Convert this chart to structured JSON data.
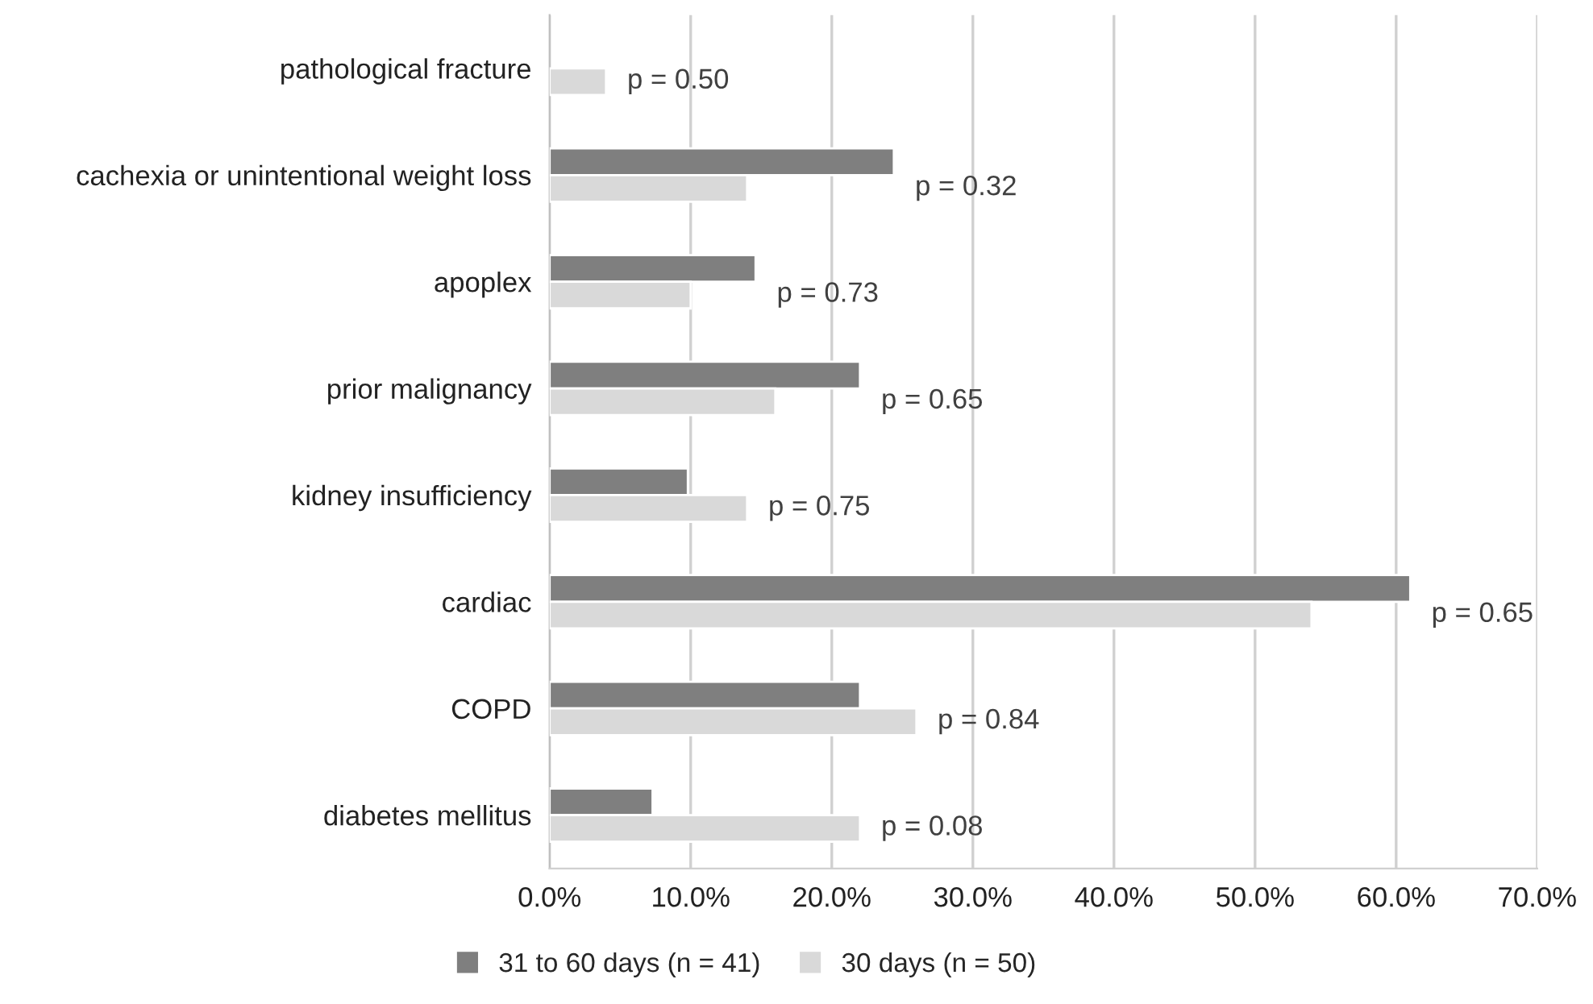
{
  "chart_data": {
    "type": "bar",
    "orientation": "horizontal",
    "categories": [
      "pathological fracture",
      "cachexia or unintentional weight loss",
      "apoplex",
      "prior malignancy",
      "kidney insufficiency",
      "cardiac",
      "COPD",
      "diabetes mellitus"
    ],
    "series": [
      {
        "name": "31 to 60 days (n = 41)",
        "color": "#7f7f7f",
        "values": [
          null,
          24.4,
          14.6,
          22.0,
          9.8,
          61.0,
          22.0,
          7.3
        ]
      },
      {
        "name": "30 days (n = 50)",
        "color": "#d9d9d9",
        "values": [
          4,
          14,
          10,
          16,
          14,
          54,
          26,
          22
        ]
      }
    ],
    "xlim": [
      0,
      70
    ],
    "xticks": [
      {
        "value": 0,
        "label": "0.0%"
      },
      {
        "value": 10,
        "label": "10.0%"
      },
      {
        "value": 20,
        "label": "20.0%"
      },
      {
        "value": 30,
        "label": "30.0%"
      },
      {
        "value": 40,
        "label": "40.0%"
      },
      {
        "value": 50,
        "label": "50.0%"
      },
      {
        "value": 60,
        "label": "60.0%"
      },
      {
        "value": 70,
        "label": "70.0%"
      }
    ],
    "grid": "x",
    "legend": "bottom",
    "annotations": [
      "p = 0.50",
      "p = 0.32",
      "p = 0.73",
      "p = 0.65",
      "p = 0.75",
      "p = 0.65",
      "p = 0.84",
      "p = 0.08"
    ]
  }
}
